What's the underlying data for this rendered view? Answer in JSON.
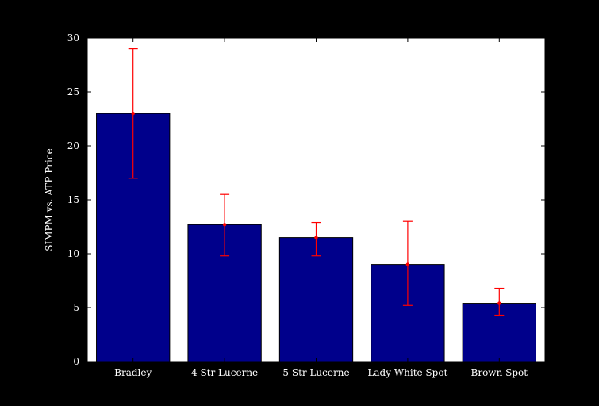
{
  "chart_data": {
    "type": "bar",
    "title": "",
    "xlabel": "",
    "ylabel": "SIMPM vs. ATP Price",
    "categories": [
      "Bradley",
      "4 Str Lucerne",
      "5 Str Lucerne",
      "Lady White Spot",
      "Brown Spot"
    ],
    "values": [
      23.0,
      12.7,
      11.5,
      9.0,
      5.4
    ],
    "error_low": [
      17.0,
      9.8,
      9.8,
      5.2,
      4.3
    ],
    "error_high": [
      29.0,
      15.5,
      12.9,
      13.0,
      6.8
    ],
    "ylim": [
      0,
      30
    ],
    "yticks": [
      0,
      5,
      10,
      15,
      20,
      25,
      30
    ],
    "grid": false,
    "colors": {
      "background": "#000000",
      "plot_area": "#ffffff",
      "bar": "#00008b",
      "error": "#ff0000",
      "text": "#ffffff"
    }
  }
}
